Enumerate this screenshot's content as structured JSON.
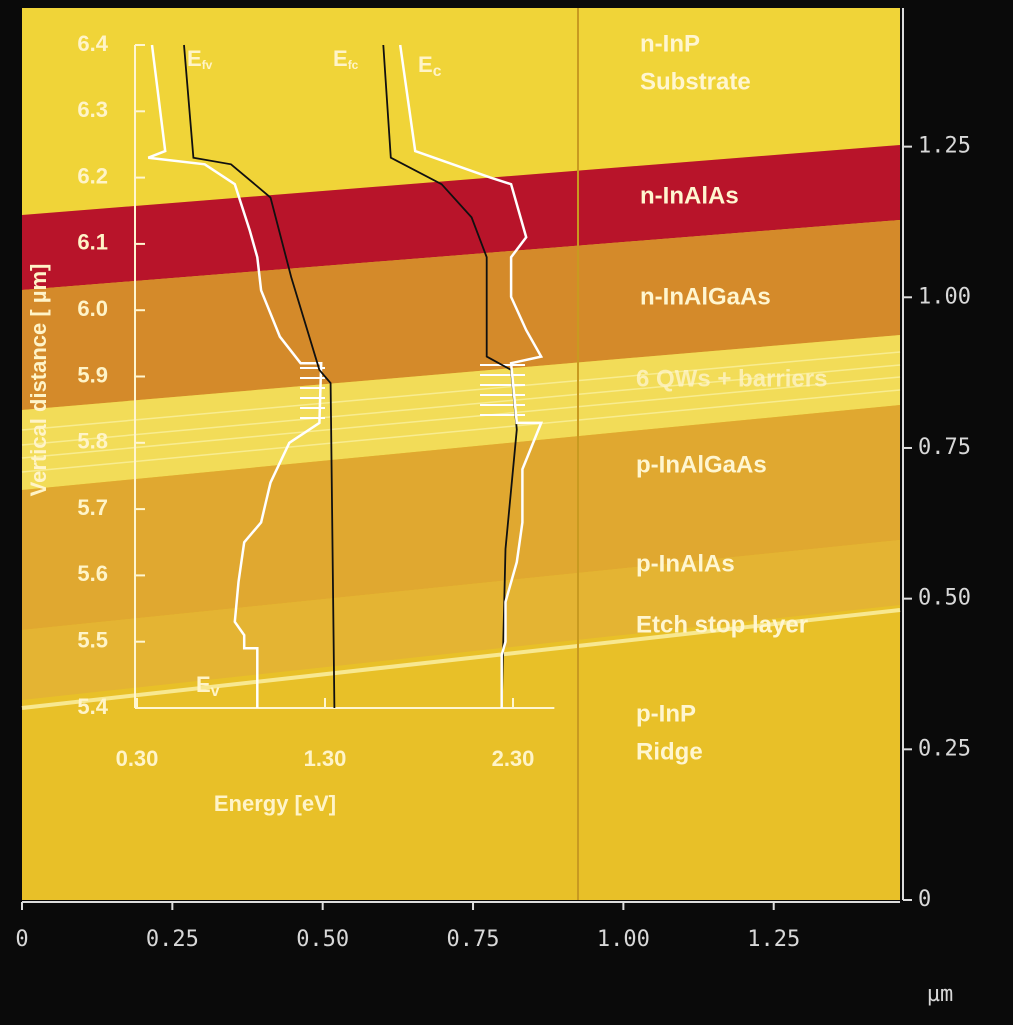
{
  "chart_data": [
    {
      "type": "scan",
      "xlim": [
        0,
        1.46
      ],
      "ylim": [
        0,
        1.48
      ],
      "xticks": [
        0,
        0.25,
        {
          "value": 0.5,
          "label": "0.50"
        },
        0.75,
        {
          "value": 1,
          "label": "1.00"
        },
        1.25
      ],
      "yticks": [
        0,
        0.25,
        {
          "value": 0.5,
          "label": "0.50"
        },
        0.75,
        {
          "value": 1,
          "label": "1.00"
        },
        1.25
      ],
      "x_unit": "µm",
      "layer_labels": [
        [
          "n-InP",
          "Substrate"
        ],
        [
          "n-InAlAs"
        ],
        [
          "n-InAlGaAs"
        ],
        [
          "6 QWs + barriers"
        ],
        [
          "p-InAlGaAs"
        ],
        [
          "p-InAlAs"
        ],
        [
          "Etch stop layer"
        ],
        [
          "p-InP",
          "Ridge"
        ]
      ]
    },
    {
      "type": "line",
      "xlabel": "Energy [eV]",
      "ylabel": "Vertical distance [ µm]",
      "xlim": [
        0.29,
        2.52
      ],
      "ylim": [
        5.4,
        6.4
      ],
      "xticks": [
        {
          "value": 0.3,
          "label": "0.30"
        },
        {
          "value": 1.3,
          "label": "1.30"
        },
        {
          "value": 2.3,
          "label": "2.30"
        }
      ],
      "yticks": [
        5.4,
        5.5,
        5.6,
        5.7,
        5.8,
        5.9,
        {
          "value": 6,
          "label": "6.0"
        },
        6.1,
        6.2,
        6.3,
        6.4
      ],
      "series": [
        {
          "name": "E",
          "subscript": "v",
          "color": "#ffffff",
          "x": [
            0.38,
            0.45,
            0.36,
            0.66,
            0.82,
            0.9,
            0.94,
            0.96,
            1.06,
            1.17,
            1.28,
            1.27,
            1.11,
            1.01,
            0.96,
            0.87,
            0.84,
            0.82,
            0.87,
            0.87,
            0.94,
            0.94
          ],
          "values": [
            6.4,
            6.24,
            6.23,
            6.22,
            6.19,
            6.12,
            6.08,
            6.03,
            5.96,
            5.92,
            5.92,
            5.83,
            5.8,
            5.74,
            5.68,
            5.65,
            5.59,
            5.53,
            5.51,
            5.49,
            5.49,
            5.4
          ]
        },
        {
          "name": "E",
          "subscript": "fv",
          "color": "#101010",
          "x": [
            0.55,
            0.6,
            0.8,
            1.01,
            1.12,
            1.27,
            1.33,
            1.35
          ],
          "values": [
            6.4,
            6.23,
            6.22,
            6.17,
            6.05,
            5.91,
            5.89,
            5.4
          ]
        },
        {
          "name": "E",
          "subscript": "fc",
          "color": "#101010",
          "x": [
            1.61,
            1.65,
            1.92,
            2.08,
            2.16,
            2.16,
            2.29,
            2.32,
            2.26,
            2.24
          ],
          "values": [
            6.4,
            6.23,
            6.19,
            6.14,
            6.08,
            5.93,
            5.91,
            5.82,
            5.64,
            5.4
          ]
        },
        {
          "name": "E",
          "subscript": "c",
          "color": "#ffffff",
          "x": [
            1.7,
            1.78,
            2.18,
            2.29,
            2.37,
            2.29,
            2.29,
            2.37,
            2.45,
            2.29,
            2.32,
            2.45,
            2.35,
            2.35,
            2.32,
            2.26,
            2.26,
            2.24,
            2.24
          ],
          "values": [
            6.4,
            6.24,
            6.2,
            6.19,
            6.11,
            6.08,
            6.02,
            5.97,
            5.93,
            5.92,
            5.83,
            5.83,
            5.76,
            5.68,
            5.62,
            5.56,
            5.5,
            5.48,
            5.4
          ]
        }
      ]
    }
  ]
}
